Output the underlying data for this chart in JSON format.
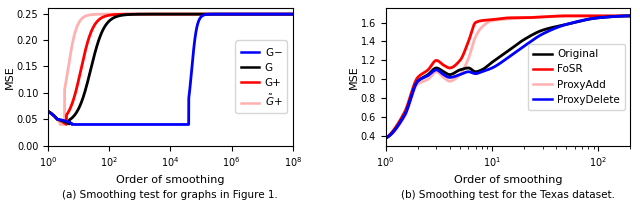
{
  "left": {
    "title": "(a) Smoothing test for graphs in Figure 1.",
    "xlabel": "Order of smoothing",
    "ylabel": "MSE",
    "xlim": [
      1,
      100000000.0
    ],
    "ylim": [
      0.0,
      0.26
    ],
    "yticks": [
      0.0,
      0.05,
      0.1,
      0.15,
      0.2,
      0.25
    ],
    "series": {
      "G-": {
        "color": "#0000ff",
        "lw": 2.0
      },
      "G": {
        "color": "#000000",
        "lw": 2.0
      },
      "G+": {
        "color": "#ff0000",
        "lw": 2.0
      },
      "~G+": {
        "color": "#ffb0b0",
        "lw": 2.0
      }
    }
  },
  "right": {
    "title": "(b) Smoothing test for the Texas dataset.",
    "xlabel": "Order of smoothing",
    "ylabel": "MSE",
    "xlim": [
      1,
      200
    ],
    "ylim": [
      0.3,
      1.75
    ],
    "yticks": [
      0.4,
      0.6,
      0.8,
      1.0,
      1.2,
      1.4,
      1.6
    ],
    "series": {
      "Original": {
        "color": "#000000",
        "lw": 2.0
      },
      "FoSR": {
        "color": "#ff0000",
        "lw": 2.0
      },
      "ProxyAdd": {
        "color": "#ffb0b0",
        "lw": 2.0
      },
      "ProxyDelete": {
        "color": "#0000ff",
        "lw": 2.0
      }
    }
  }
}
